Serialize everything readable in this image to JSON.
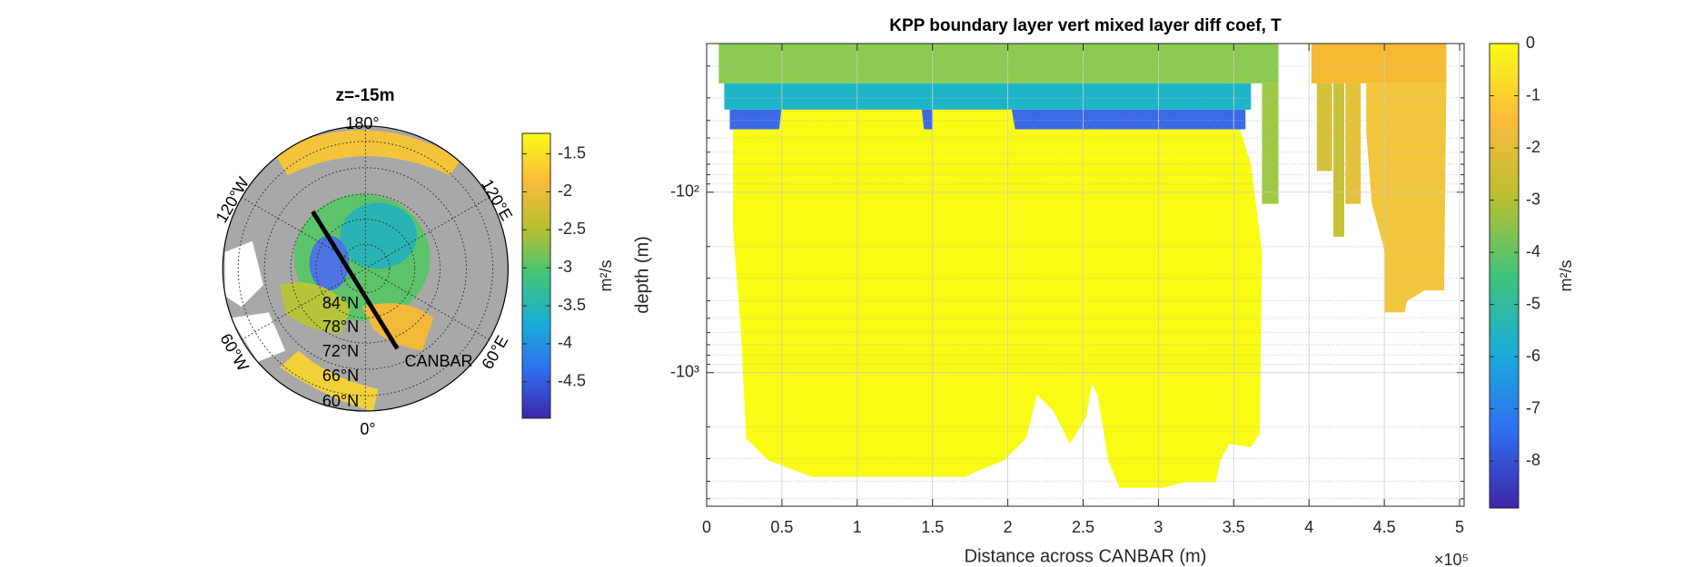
{
  "chart_data": [
    {
      "type": "map",
      "title": "z=-15m",
      "lon_labels": [
        "180°",
        "120°E",
        "60°E",
        "0°",
        "60°W",
        "120°W"
      ],
      "lat_labels": [
        "84°N",
        "78°N",
        "72°N",
        "66°N",
        "60°N"
      ],
      "section_label": "CANBAR",
      "colormap": [
        "#3e26a8",
        "#2f6ef0",
        "#1aaed8",
        "#3fc37a",
        "#b8c02f",
        "#fbbb3c",
        "#f9fb15"
      ],
      "colorbar": {
        "label": "m²/s",
        "clim": [
          -4.98,
          -1.23
        ],
        "ticks": [
          -1.5,
          -2,
          -2.5,
          -3,
          -3.5,
          -4,
          -4.5
        ]
      }
    },
    {
      "type": "heatmap",
      "title": "KPP boundary layer vert mixed layer diff coef, T",
      "xlabel": "Distance across CANBAR (m)",
      "ylabel": "depth (m)",
      "xlim": [
        0,
        503000
      ],
      "xticks": [
        0,
        {
          "value": 50000,
          "label": "0.5"
        },
        {
          "value": 100000,
          "label": "1"
        },
        {
          "value": 150000,
          "label": "1.5"
        },
        {
          "value": 200000,
          "label": "2"
        },
        {
          "value": 250000,
          "label": "2.5"
        },
        {
          "value": 300000,
          "label": "3"
        },
        {
          "value": 350000,
          "label": "3.5"
        },
        {
          "value": 400000,
          "label": "4"
        },
        {
          "value": 450000,
          "label": "4.5"
        },
        {
          "value": 500000,
          "label": "5"
        }
      ],
      "x_multiplier": "×10⁵",
      "ylim": [
        -15,
        -5500
      ],
      "yscale": "log",
      "yticks": [
        {
          "value": -100,
          "label": "-10²"
        },
        {
          "value": -1000,
          "label": "-10³"
        }
      ],
      "yminorticks": [
        -20,
        -30,
        -40,
        -50,
        -60,
        -70,
        -80,
        -90,
        -200,
        -300,
        -400,
        -500,
        -600,
        -700,
        -800,
        -900,
        -2000,
        -3000,
        -4000,
        -5000
      ],
      "grid": true,
      "colormap": [
        "#3e26a8",
        "#2f6ef0",
        "#1aaed8",
        "#3fc37a",
        "#b8c02f",
        "#fbbb3c",
        "#f9fb15"
      ],
      "colorbar": {
        "label": "m²/s",
        "clim": [
          -8.9,
          0
        ],
        "ticks": [
          0,
          -1,
          -2,
          -3,
          -4,
          -5,
          -6,
          -7,
          -8
        ]
      }
    }
  ]
}
